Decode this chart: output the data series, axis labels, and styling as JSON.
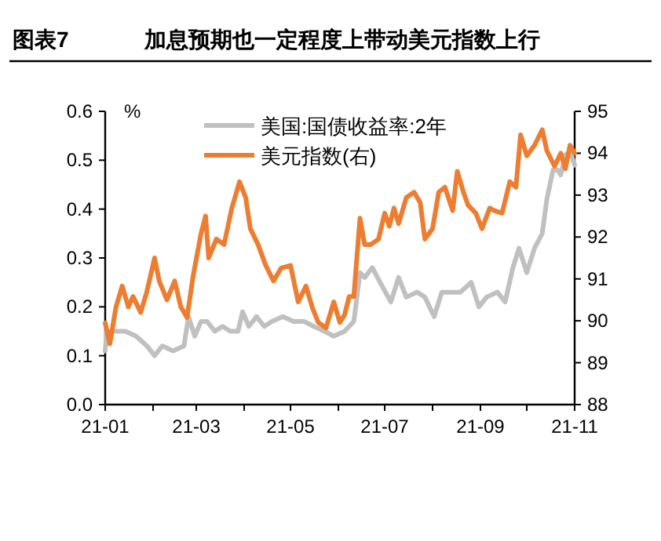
{
  "chart_data": {
    "type": "line",
    "title": "图表7",
    "subtitle": "加息预期也一定程度上带动美元指数上行",
    "ylabel": "%",
    "xlim": [
      "--01-01",
      "--11-01"
    ],
    "xticks": [
      {
        "value": "--01-01",
        "label": "21-01"
      },
      {
        "value": "--02-01",
        "label": null
      },
      {
        "value": "--03-01",
        "label": "21-03"
      },
      {
        "value": "--04-01",
        "label": null
      },
      {
        "value": "--05-01",
        "label": "21-05"
      },
      {
        "value": "--06-01",
        "label": null
      },
      {
        "value": "--07-01",
        "label": "21-07"
      },
      {
        "value": "--08-01",
        "label": null
      },
      {
        "value": "--09-01",
        "label": "21-09"
      },
      {
        "value": "--10-01",
        "label": null
      },
      {
        "value": "--11-01",
        "label": "21-11"
      }
    ],
    "ylim": [
      0,
      0.6
    ],
    "yticks": [
      {
        "value": 0,
        "label": "0.0"
      },
      {
        "value": 0.1,
        "label": "0.1"
      },
      {
        "value": 0.2,
        "label": "0.2"
      },
      {
        "value": 0.3,
        "label": "0.3"
      },
      {
        "value": 0.4,
        "label": "0.4"
      },
      {
        "value": 0.5,
        "label": "0.5"
      },
      {
        "value": 0.6,
        "label": "0.6"
      }
    ],
    "y2lim": [
      88,
      95
    ],
    "y2ticks": [
      88,
      89,
      90,
      91,
      92,
      93,
      94,
      95
    ],
    "legend": "top",
    "series": [
      {
        "name": "美国:国债收益率:2年",
        "color": "#c0c0c0",
        "axis": "y",
        "x": [
          "--01-01",
          "--01-02",
          "--01-07",
          "--01-14",
          "--01-21",
          "--01-28",
          "--02-02",
          "--02-07",
          "--02-14",
          "--02-21",
          "--02-24",
          "--02-28",
          "--03-04",
          "--03-08",
          "--03-13",
          "--03-18",
          "--03-23",
          "--03-28",
          "--03-31",
          "--04-04",
          "--04-09",
          "--04-14",
          "--04-19",
          "--04-26",
          "--05-03",
          "--05-10",
          "--05-16",
          "--05-23",
          "--05-29",
          "--06-05",
          "--06-11",
          "--06-15",
          "--06-18",
          "--06-23",
          "--06-28",
          "--07-05",
          "--07-10",
          "--07-15",
          "--07-22",
          "--07-27",
          "--08-02",
          "--08-07",
          "--08-12",
          "--08-19",
          "--08-26",
          "--08-31",
          "--09-05",
          "--09-12",
          "--09-17",
          "--09-22",
          "--09-26",
          "--10-01",
          "--10-06",
          "--10-11",
          "--10-14",
          "--10-18",
          "--10-21",
          "--10-23",
          "--10-26",
          "--10-29",
          "--11-01"
        ],
        "values": [
          0.11,
          0.15,
          0.15,
          0.15,
          0.14,
          0.12,
          0.1,
          0.12,
          0.11,
          0.12,
          0.18,
          0.14,
          0.17,
          0.17,
          0.15,
          0.16,
          0.15,
          0.15,
          0.19,
          0.16,
          0.18,
          0.16,
          0.17,
          0.18,
          0.17,
          0.17,
          0.16,
          0.15,
          0.14,
          0.15,
          0.17,
          0.27,
          0.26,
          0.28,
          0.25,
          0.21,
          0.26,
          0.22,
          0.23,
          0.22,
          0.18,
          0.23,
          0.23,
          0.23,
          0.25,
          0.2,
          0.22,
          0.23,
          0.21,
          0.28,
          0.32,
          0.27,
          0.32,
          0.35,
          0.42,
          0.48,
          0.48,
          0.47,
          0.51,
          0.52,
          0.49
        ]
      },
      {
        "name": "美元指数(右)",
        "color": "#ed7d31",
        "axis": "y2",
        "x": [
          "--01-01",
          "--01-04",
          "--01-08",
          "--01-12",
          "--01-16",
          "--01-19",
          "--01-24",
          "--01-28",
          "--02-02",
          "--02-05",
          "--02-10",
          "--02-15",
          "--02-19",
          "--02-23",
          "--02-27",
          "--03-04",
          "--03-07",
          "--03-09",
          "--03-14",
          "--03-19",
          "--03-24",
          "--03-29",
          "--04-02",
          "--04-05",
          "--04-10",
          "--04-15",
          "--04-20",
          "--04-25",
          "--05-01",
          "--05-06",
          "--05-11",
          "--05-15",
          "--05-19",
          "--05-24",
          "--05-29",
          "--06-02",
          "--06-05",
          "--06-08",
          "--06-11",
          "--06-15",
          "--06-18",
          "--06-22",
          "--06-27",
          "--07-01",
          "--07-04",
          "--07-07",
          "--07-10",
          "--07-15",
          "--07-20",
          "--07-24",
          "--07-27",
          "--08-01",
          "--08-05",
          "--08-09",
          "--08-14",
          "--08-17",
          "--08-21",
          "--08-24",
          "--08-29",
          "--09-02",
          "--09-07",
          "--09-10",
          "--09-15",
          "--09-20",
          "--09-24",
          "--09-27",
          "--10-01",
          "--10-06",
          "--10-11",
          "--10-14",
          "--10-19",
          "--10-23",
          "--10-26",
          "--10-29",
          "--11-01"
        ],
        "values": [
          89.95,
          89.45,
          90.33,
          90.83,
          90.33,
          90.58,
          90.2,
          90.7,
          91.5,
          90.95,
          90.5,
          90.95,
          90.33,
          90.08,
          91.08,
          92.07,
          92.5,
          91.5,
          91.95,
          91.82,
          92.69,
          93.32,
          92.94,
          92.2,
          91.82,
          91.32,
          90.95,
          91.26,
          91.32,
          90.45,
          90.83,
          90.33,
          89.96,
          89.83,
          90.45,
          89.96,
          90.14,
          90.58,
          90.58,
          92.45,
          91.82,
          91.82,
          91.95,
          92.57,
          92.26,
          92.69,
          92.32,
          92.94,
          93.07,
          92.82,
          91.95,
          92.2,
          93.07,
          93.19,
          92.63,
          93.57,
          93.07,
          92.76,
          92.57,
          92.2,
          92.69,
          92.63,
          92.57,
          93.32,
          93.19,
          94.44,
          93.94,
          94.19,
          94.56,
          94.06,
          93.69,
          94.0,
          93.63,
          94.19,
          94.0
        ]
      }
    ]
  }
}
